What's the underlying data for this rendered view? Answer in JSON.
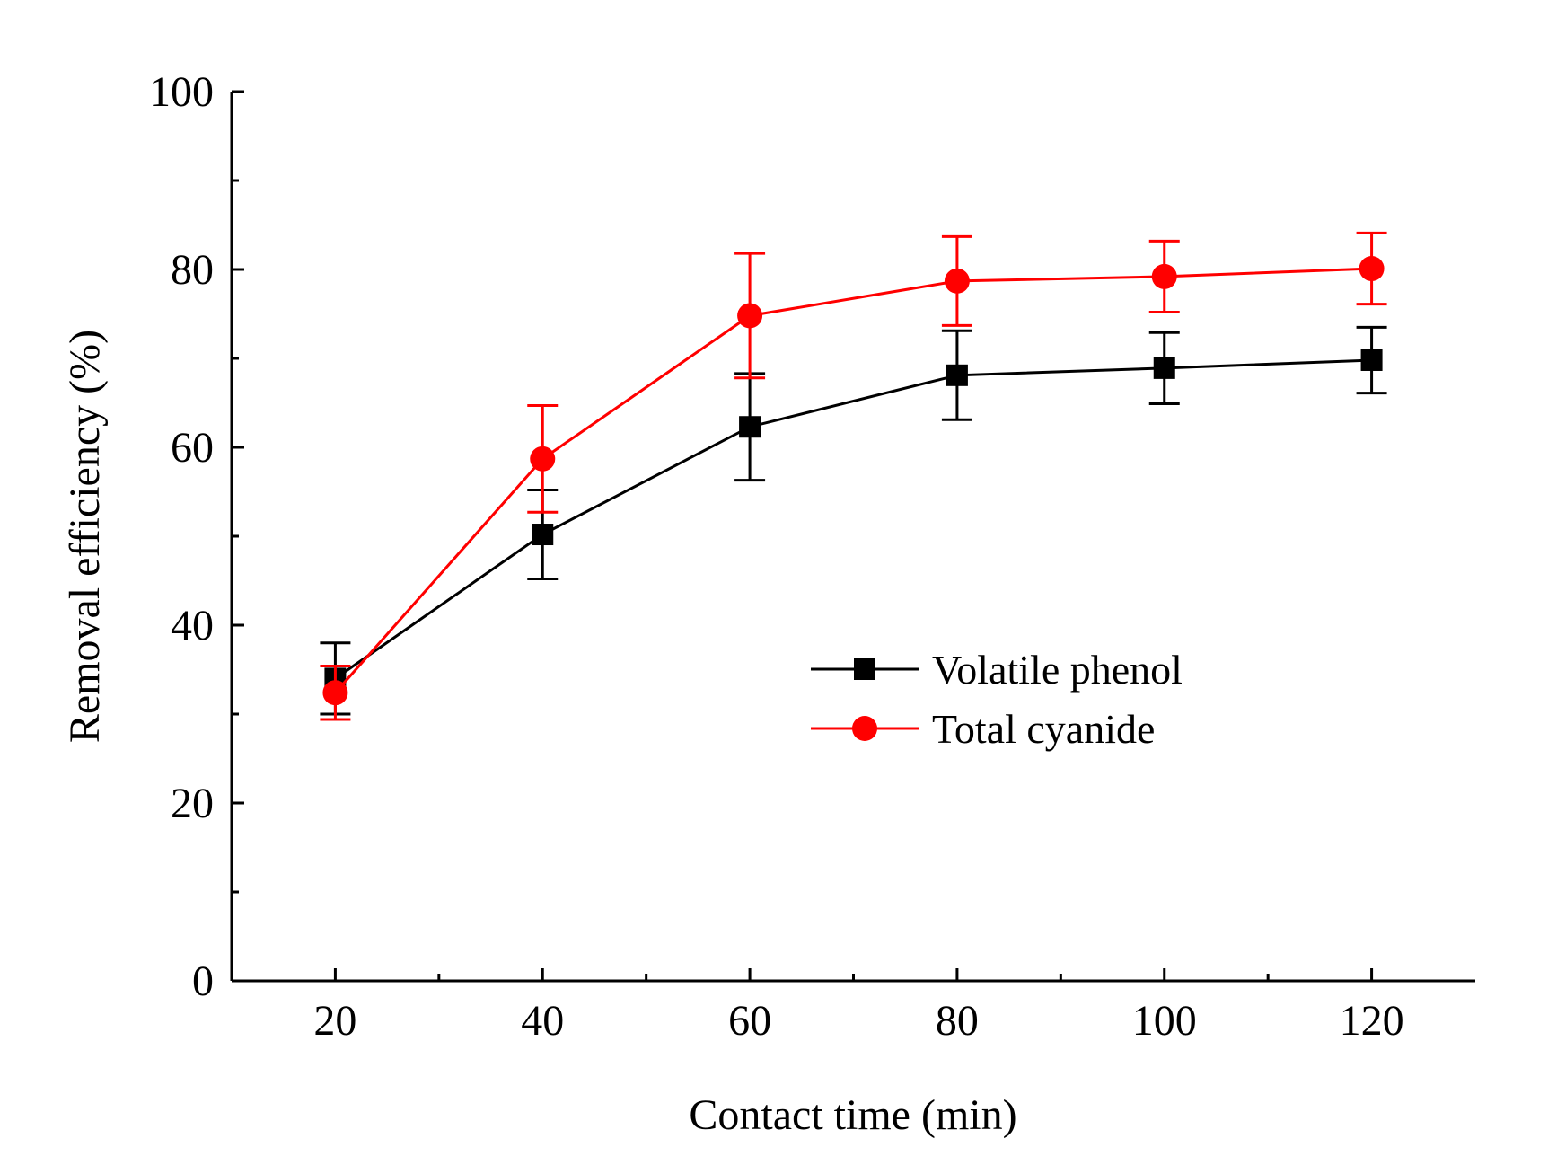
{
  "chart_data": {
    "type": "line",
    "title": "",
    "xlabel": "Contact time (min)",
    "ylabel": "Removal efficiency (%)",
    "xlim": [
      10,
      130
    ],
    "ylim": [
      0,
      100
    ],
    "x_ticks": [
      20,
      40,
      60,
      80,
      100,
      120
    ],
    "x_minor_ticks": [
      30,
      50,
      70,
      90,
      110
    ],
    "y_ticks": [
      0,
      20,
      40,
      60,
      80,
      100
    ],
    "y_minor_ticks": [
      10,
      30,
      50,
      70,
      90
    ],
    "grid": false,
    "legend_position": "center-right",
    "x": [
      20,
      40,
      60,
      80,
      100,
      120
    ],
    "series": [
      {
        "name": "Volatile phenol",
        "color": "#000000",
        "marker": "square",
        "values": [
          34.0,
          50.2,
          62.3,
          68.1,
          68.9,
          69.8
        ],
        "error": [
          4.0,
          5.0,
          6.0,
          5.0,
          4.0,
          3.7
        ]
      },
      {
        "name": "Total cyanide",
        "color": "#ff0000",
        "marker": "circle",
        "values": [
          32.4,
          58.7,
          74.8,
          78.7,
          79.2,
          80.1
        ],
        "error": [
          3.0,
          6.0,
          7.0,
          5.0,
          4.0,
          4.0
        ]
      }
    ]
  }
}
